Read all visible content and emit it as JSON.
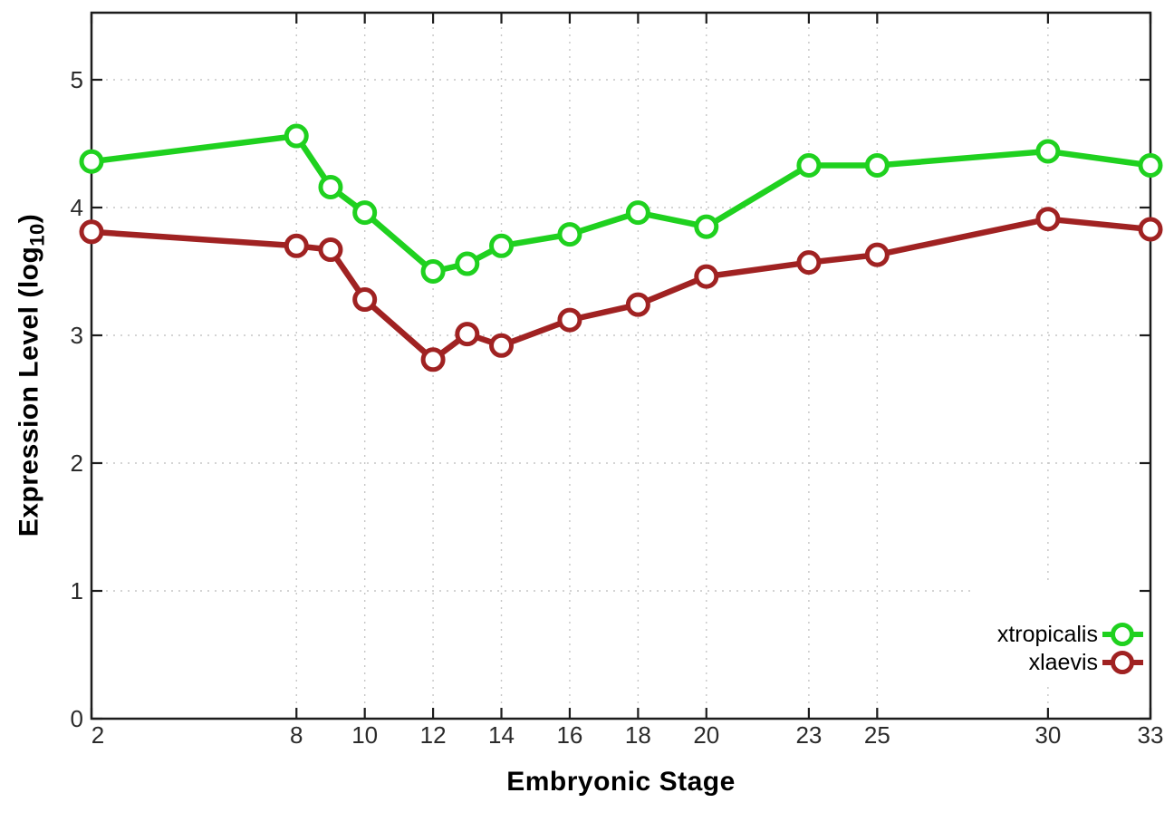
{
  "chart_data": {
    "type": "line",
    "title": "",
    "xlabel": "Embryonic Stage",
    "ylabel": "Expression Level (log10)",
    "ylabel_parts": {
      "pre": "Expression Level (log",
      "sub": "10",
      "post": ")"
    },
    "x": [
      2,
      8,
      9,
      10,
      12,
      13,
      14,
      16,
      18,
      20,
      23,
      25,
      30,
      33
    ],
    "xtick_labels": [
      "2",
      "8",
      "10",
      "12",
      "14",
      "16",
      "18",
      "20",
      "23",
      "25",
      "30",
      "33"
    ],
    "xtick_values": [
      2,
      8,
      10,
      12,
      14,
      16,
      18,
      20,
      23,
      25,
      30,
      33
    ],
    "ytick_labels": [
      "0",
      "1",
      "2",
      "3",
      "4",
      "5"
    ],
    "ytick_values": [
      0,
      1,
      2,
      3,
      4,
      5
    ],
    "xlim": [
      2,
      33
    ],
    "ylim": [
      0,
      5.53
    ],
    "grid": true,
    "legend_position": "inside-bottom-right",
    "series": [
      {
        "name": "xtropicalis",
        "color": "#1fd11f",
        "values": [
          4.36,
          4.56,
          4.16,
          3.96,
          3.5,
          3.56,
          3.7,
          3.79,
          3.96,
          3.85,
          4.33,
          4.33,
          4.44,
          4.33
        ]
      },
      {
        "name": "xlaevis",
        "color": "#a02222",
        "values": [
          3.81,
          3.7,
          3.67,
          3.28,
          2.81,
          3.01,
          2.92,
          3.12,
          3.24,
          3.46,
          3.57,
          3.63,
          3.91,
          3.83
        ]
      }
    ],
    "colors": {
      "background": "#ffffff",
      "axis": "#1c1c1c",
      "grid": "#c6c6c6",
      "tick_text": "#2b2b2b",
      "legend_text": "#000000"
    }
  }
}
